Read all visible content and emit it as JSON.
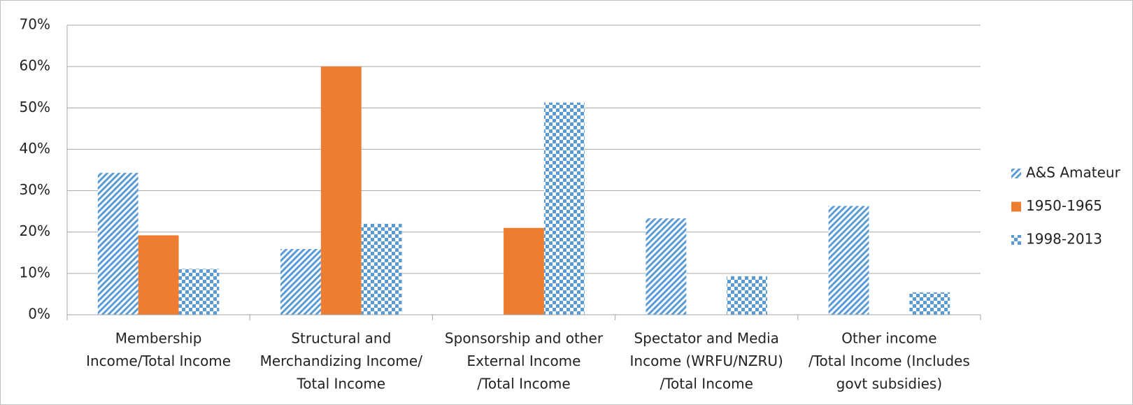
{
  "chart_data": {
    "type": "bar",
    "categories": [
      [
        "Membership",
        "Income/Total Income"
      ],
      [
        "Structural and",
        "Merchandizing Income/",
        "Total Income"
      ],
      [
        "Sponsorship and other",
        "External Income",
        "/Total Income"
      ],
      [
        "Spectator and Media",
        "Income (WRFU/NZRU)",
        "/Total Income"
      ],
      [
        "Other income",
        "/Total Income (Includes",
        "govt subsidies)"
      ]
    ],
    "series": [
      {
        "name": "A&S Amateur",
        "color": "#5b9bd5",
        "pattern": "diagonal",
        "values": [
          34.3,
          15.9,
          null,
          23.3,
          26.3
        ]
      },
      {
        "name": "1950-1965",
        "color": "#ed7d31",
        "pattern": "solid",
        "values": [
          19.2,
          60,
          21,
          null,
          null
        ]
      },
      {
        "name": "1998-2013",
        "color": "#5b9bd5",
        "pattern": "checker",
        "values": [
          11.1,
          22,
          51.3,
          9.3,
          5.4
        ]
      }
    ],
    "ylim": [
      0,
      70
    ],
    "yticks": [
      {
        "value": 0,
        "label": "0%"
      },
      {
        "value": 10,
        "label": "10%"
      },
      {
        "value": 20,
        "label": "20%"
      },
      {
        "value": 30,
        "label": "30%"
      },
      {
        "value": 40,
        "label": "40%"
      },
      {
        "value": 50,
        "label": "50%"
      },
      {
        "value": 60,
        "label": "60%"
      },
      {
        "value": 70,
        "label": "70%"
      }
    ],
    "grid": true,
    "legend": "right"
  }
}
